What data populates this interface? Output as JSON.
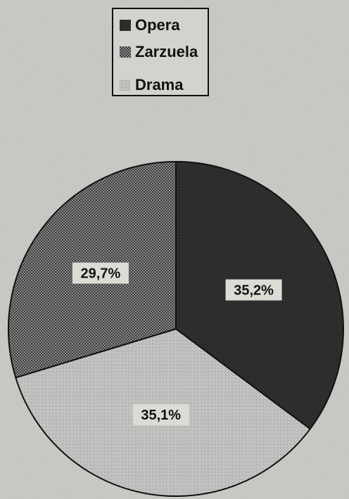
{
  "chart_data": {
    "type": "pie",
    "categories": [
      "Opera",
      "Zarzuela",
      "Drama"
    ],
    "values": [
      35.2,
      29.7,
      35.1
    ],
    "labels": [
      "35,2%",
      "29,7%",
      "35,1%"
    ],
    "legend": {
      "entries": [
        "Opera",
        "Zarzuela",
        "Drama"
      ],
      "placement": "top-center"
    },
    "colors": {
      "Opera": "#222222",
      "Zarzuela": "#6e6e6e",
      "Drama": "#b8b8b8"
    },
    "title": "",
    "start_angle": "12 o'clock",
    "direction": "clockwise",
    "slice_order": [
      "Opera",
      "Drama",
      "Zarzuela"
    ]
  }
}
